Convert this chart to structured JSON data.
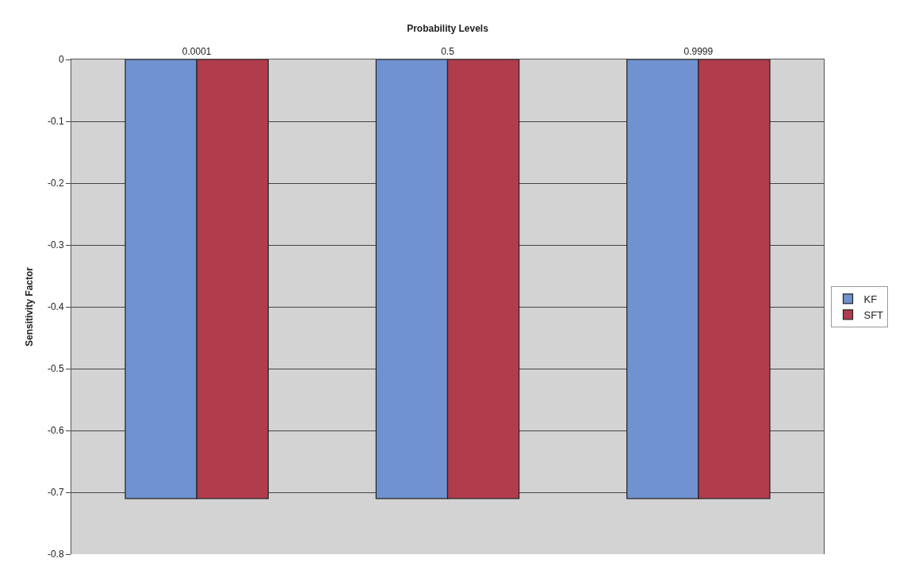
{
  "chart_data": {
    "type": "bar",
    "xlabel": "Probability Levels",
    "ylabel": "Sensitivity Factor",
    "categories": [
      "0.0001",
      "0.5",
      "0.9999"
    ],
    "series": [
      {
        "name": "KF",
        "color": "#7092d0",
        "values": [
          -0.71,
          -0.71,
          -0.71
        ]
      },
      {
        "name": "SFT",
        "color": "#b03c4c",
        "values": [
          -0.71,
          -0.71,
          -0.71
        ]
      }
    ],
    "ylim": [
      -0.8,
      0
    ],
    "yticks": [
      0,
      -0.1,
      -0.2,
      -0.3,
      -0.4,
      -0.5,
      -0.6,
      -0.7,
      -0.8
    ],
    "grid": "y",
    "legend": "right"
  }
}
